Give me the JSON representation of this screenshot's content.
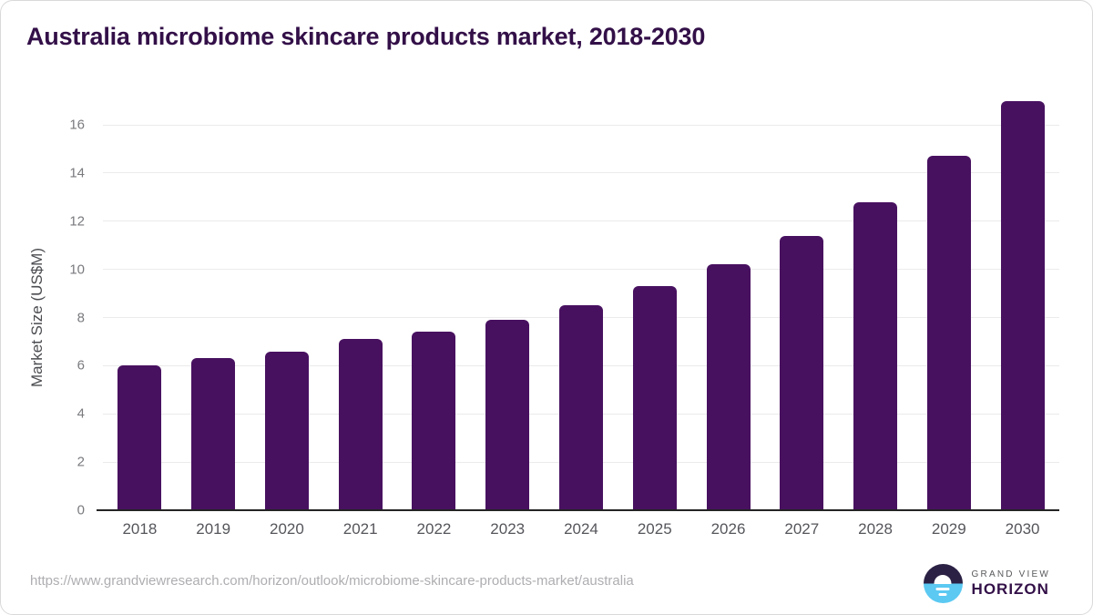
{
  "title": "Australia microbiome skincare products market, 2018-2030",
  "chart_data": {
    "type": "bar",
    "title": "Australia microbiome skincare products market, 2018-2030",
    "categories": [
      "2018",
      "2019",
      "2020",
      "2021",
      "2022",
      "2023",
      "2024",
      "2025",
      "2026",
      "2027",
      "2028",
      "2029",
      "2030"
    ],
    "values": [
      6.0,
      6.3,
      6.6,
      7.1,
      7.4,
      7.9,
      8.5,
      9.3,
      10.2,
      11.4,
      12.8,
      14.7,
      17.0
    ],
    "xlabel": "",
    "ylabel": "Market Size (US$M)",
    "ylim": [
      0,
      16
    ],
    "yticks": [
      0,
      2,
      4,
      6,
      8,
      10,
      12,
      14,
      16
    ],
    "grid": true,
    "legend": "none",
    "bar_color": "#481160"
  },
  "colors": {
    "bar": "#481160",
    "accent_purple": "#331048",
    "gridline": "#ebebeb",
    "axis_line": "#242424",
    "logo_dark": "#2b2144",
    "logo_blue": "#5bc9f2"
  },
  "footer": {
    "url": "https://www.grandviewresearch.com/horizon/outlook/microbiome-skincare-products-market/australia",
    "logo_line1": "GRAND VIEW",
    "logo_line2": "HORIZON"
  }
}
